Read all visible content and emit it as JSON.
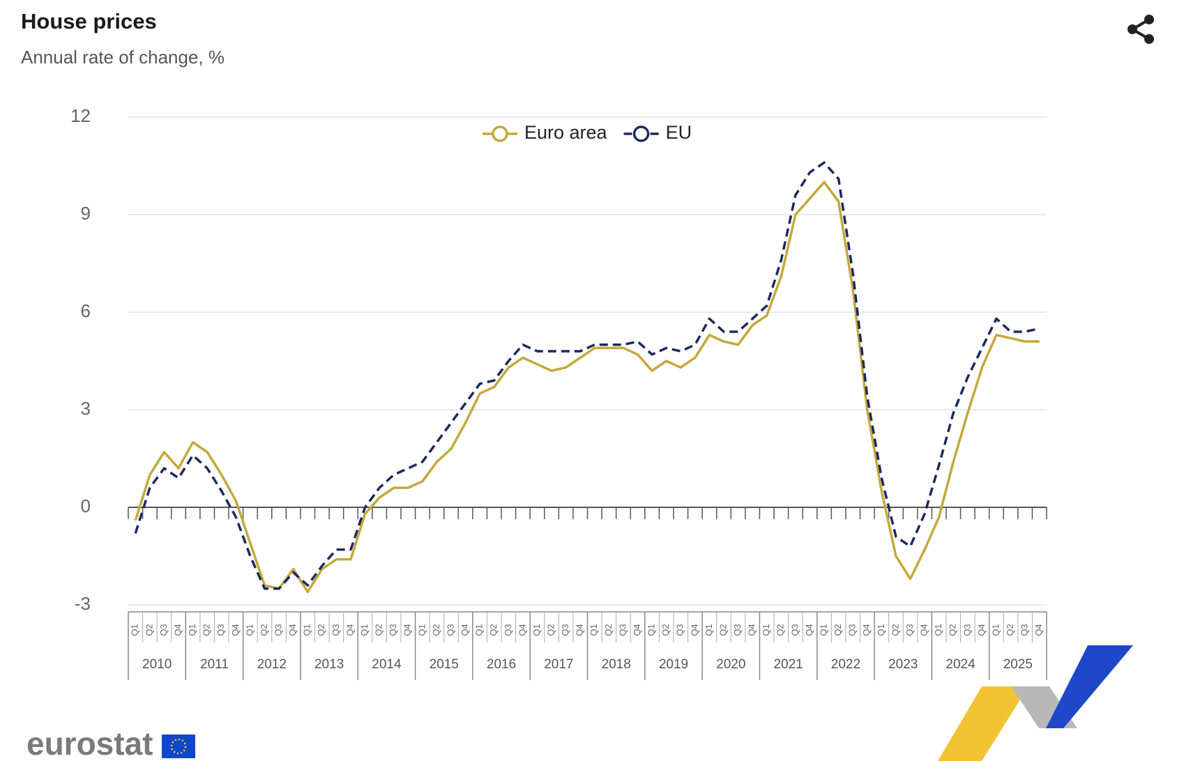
{
  "chart_data": {
    "type": "line",
    "title": "House prices",
    "subtitle": "Annual rate of change, %",
    "logo": "eurostat",
    "categories": [
      "Q1",
      "Q2",
      "Q3",
      "Q4",
      "Q1",
      "Q2",
      "Q3",
      "Q4",
      "Q1",
      "Q2",
      "Q3",
      "Q4",
      "Q1",
      "Q2",
      "Q3",
      "Q4",
      "Q1",
      "Q2",
      "Q3",
      "Q4",
      "Q1",
      "Q2",
      "Q3",
      "Q4",
      "Q1",
      "Q2",
      "Q3",
      "Q4",
      "Q1",
      "Q2",
      "Q3",
      "Q4",
      "Q1",
      "Q2",
      "Q3",
      "Q4",
      "Q1",
      "Q2",
      "Q3",
      "Q4",
      "Q1",
      "Q2",
      "Q3",
      "Q4",
      "Q1",
      "Q2",
      "Q3",
      "Q4",
      "Q1",
      "Q2",
      "Q3",
      "Q4",
      "Q1",
      "Q2",
      "Q3",
      "Q4",
      "Q1",
      "Q2",
      "Q3",
      "Q4",
      "Q1",
      "Q2",
      "Q3",
      "Q4"
    ],
    "category_groups": [
      "2010",
      "2011",
      "2012",
      "2013",
      "2014",
      "2015",
      "2016",
      "2017",
      "2018",
      "2019",
      "2020",
      "2021",
      "2022",
      "2023",
      "2024",
      "2025"
    ],
    "series": [
      {
        "name": "Euro area",
        "color": "#c5a83a",
        "dashed": false,
        "values": [
          -0.4,
          1.0,
          1.7,
          1.2,
          2.0,
          1.7,
          1.0,
          0.2,
          -1.1,
          -2.4,
          -2.5,
          -1.9,
          -2.6,
          -1.9,
          -1.6,
          -1.6,
          -0.2,
          0.3,
          0.6,
          0.6,
          0.8,
          1.4,
          1.8,
          2.6,
          3.5,
          3.7,
          4.3,
          4.6,
          4.4,
          4.2,
          4.3,
          4.6,
          4.9,
          4.9,
          4.9,
          4.7,
          4.2,
          4.5,
          4.3,
          4.6,
          5.3,
          5.1,
          5.0,
          5.6,
          5.9,
          7.1,
          9.0,
          9.5,
          10.0,
          9.4,
          6.7,
          3.0,
          0.5,
          -1.5,
          -2.2,
          -1.3,
          -0.3,
          1.4,
          2.9,
          4.3,
          5.3,
          5.2,
          5.1,
          5.1
        ]
      },
      {
        "name": "EU",
        "color": "#1b2a5e",
        "dashed": true,
        "values": [
          -0.8,
          0.6,
          1.2,
          0.9,
          1.6,
          1.2,
          0.5,
          -0.3,
          -1.5,
          -2.5,
          -2.5,
          -2.0,
          -2.4,
          -1.8,
          -1.3,
          -1.3,
          0.0,
          0.6,
          1.0,
          1.2,
          1.4,
          2.0,
          2.6,
          3.2,
          3.8,
          3.9,
          4.5,
          5.0,
          4.8,
          4.8,
          4.8,
          4.8,
          5.0,
          5.0,
          5.0,
          5.1,
          4.7,
          4.9,
          4.8,
          5.0,
          5.8,
          5.4,
          5.4,
          5.8,
          6.2,
          7.6,
          9.6,
          10.3,
          10.6,
          10.1,
          7.2,
          3.4,
          0.9,
          -0.9,
          -1.2,
          -0.2,
          1.3,
          2.9,
          4.0,
          4.9,
          5.8,
          5.4,
          5.4,
          5.5
        ]
      }
    ],
    "ylim": [
      -3,
      12
    ],
    "yticks": [
      -3,
      0,
      3,
      6,
      9,
      12
    ],
    "grid": true,
    "legend": "top"
  }
}
